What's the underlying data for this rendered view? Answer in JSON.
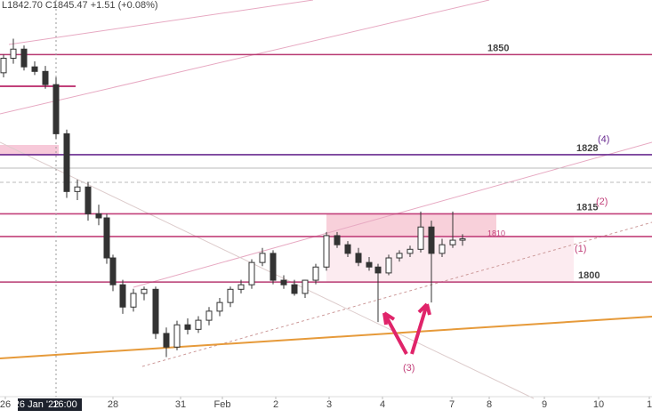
{
  "chart_data": {
    "type": "candlestick",
    "legend_text": "L1842.70 C1845.47 +1.51 (+0.08%)",
    "up_color": "#ffffff",
    "down_color": "#333333",
    "edge_color": "#333333",
    "x": [
      4,
      15,
      27,
      39,
      51,
      63,
      75,
      87,
      99,
      111,
      120,
      127,
      138,
      150,
      162,
      175,
      187,
      199,
      211,
      223,
      235,
      247,
      259,
      271,
      283,
      295,
      307,
      319,
      331,
      343,
      355,
      367,
      379,
      391,
      403,
      415,
      425,
      437,
      449,
      461,
      473,
      485,
      497,
      509,
      520
    ],
    "open": [
      1846.0,
      1849.2,
      1851.2,
      1847.3,
      1846.3,
      1843.4,
      1832.6,
      1819.9,
      1820.9,
      1815.0,
      1814.1,
      1805.3,
      1799.4,
      1794.5,
      1797.5,
      1798.4,
      1788.7,
      1785.7,
      1790.6,
      1789.6,
      1791.6,
      1793.6,
      1795.5,
      1798.4,
      1799.4,
      1804.3,
      1806.3,
      1800.4,
      1799.4,
      1797.5,
      1800.4,
      1803.3,
      1810.2,
      1808.2,
      1806.3,
      1804.3,
      1803.3,
      1802.0,
      1805.3,
      1806.3,
      1807.2,
      1812.1,
      1806.3,
      1808.2,
      1809.2
    ],
    "high": [
      1850.0,
      1853.5,
      1852.0,
      1848.5,
      1847.5,
      1845.0,
      1833.5,
      1822.5,
      1822.0,
      1817.0,
      1815.0,
      1806.0,
      1800.5,
      1798.5,
      1799.0,
      1799.0,
      1790.0,
      1791.5,
      1792.0,
      1792.5,
      1794.5,
      1796.5,
      1799.0,
      1800.5,
      1805.0,
      1807.5,
      1807.0,
      1801.5,
      1800.5,
      1800.5,
      1804.0,
      1811.0,
      1811.0,
      1809.0,
      1807.5,
      1805.5,
      1804.0,
      1806.0,
      1807.0,
      1808.0,
      1815.5,
      1813.5,
      1809.5,
      1815.5,
      1810.5
    ],
    "low": [
      1845.0,
      1848.0,
      1846.5,
      1845.5,
      1842.5,
      1831.5,
      1818.5,
      1818.0,
      1813.5,
      1812.5,
      1804.0,
      1798.0,
      1793.0,
      1793.5,
      1796.0,
      1787.5,
      1783.5,
      1785.0,
      1788.5,
      1788.8,
      1790.5,
      1792.5,
      1794.5,
      1797.5,
      1798.5,
      1803.5,
      1799.5,
      1798.5,
      1797.0,
      1796.5,
      1799.5,
      1802.5,
      1807.5,
      1805.5,
      1803.5,
      1802.5,
      1791.2,
      1801.5,
      1804.5,
      1805.5,
      1806.5,
      1795.5,
      1805.5,
      1807.5,
      1808.0
    ],
    "close": [
      1849.2,
      1851.2,
      1847.3,
      1846.3,
      1843.4,
      1832.6,
      1819.9,
      1820.9,
      1815.0,
      1814.1,
      1805.3,
      1799.4,
      1794.5,
      1797.5,
      1798.4,
      1788.7,
      1785.7,
      1790.6,
      1789.6,
      1791.6,
      1793.6,
      1795.5,
      1798.4,
      1799.4,
      1804.3,
      1806.3,
      1800.4,
      1799.4,
      1797.5,
      1800.4,
      1803.3,
      1810.2,
      1808.2,
      1806.3,
      1804.3,
      1803.3,
      1802.0,
      1805.3,
      1806.3,
      1807.2,
      1812.1,
      1806.3,
      1808.2,
      1809.2,
      1809.5
    ],
    "xlim": [
      0,
      733
    ],
    "ylim": [
      1775,
      1862
    ],
    "xticks": [
      {
        "value": 6,
        "label": "26"
      },
      {
        "value": 127,
        "label": "28"
      },
      {
        "value": 203,
        "label": "31"
      },
      {
        "value": 250,
        "label": "Feb"
      },
      {
        "value": 310,
        "label": "2"
      },
      {
        "value": 370,
        "label": "3"
      },
      {
        "value": 430,
        "label": "4"
      },
      {
        "value": 508,
        "label": "7"
      },
      {
        "value": 550,
        "label": "8"
      },
      {
        "value": 612,
        "label": "9"
      },
      {
        "value": 673,
        "label": "10"
      },
      {
        "value": 730,
        "label": "1"
      }
    ],
    "crosshair": {
      "value": 55,
      "date_label": "26 Jan '22",
      "time_label": "16:00"
    },
    "levels": [
      {
        "value": 1850,
        "color": "#b83a72"
      },
      {
        "value": 1828,
        "color": "#6a2c91"
      },
      {
        "value": 1815,
        "color": "#c2407a"
      },
      {
        "value": 1810,
        "color": "#c2407a"
      },
      {
        "value": 1800,
        "color": "#b83a72"
      }
    ],
    "annotations": [
      "(1)",
      "(2)",
      "(3)",
      "(4)"
    ]
  }
}
